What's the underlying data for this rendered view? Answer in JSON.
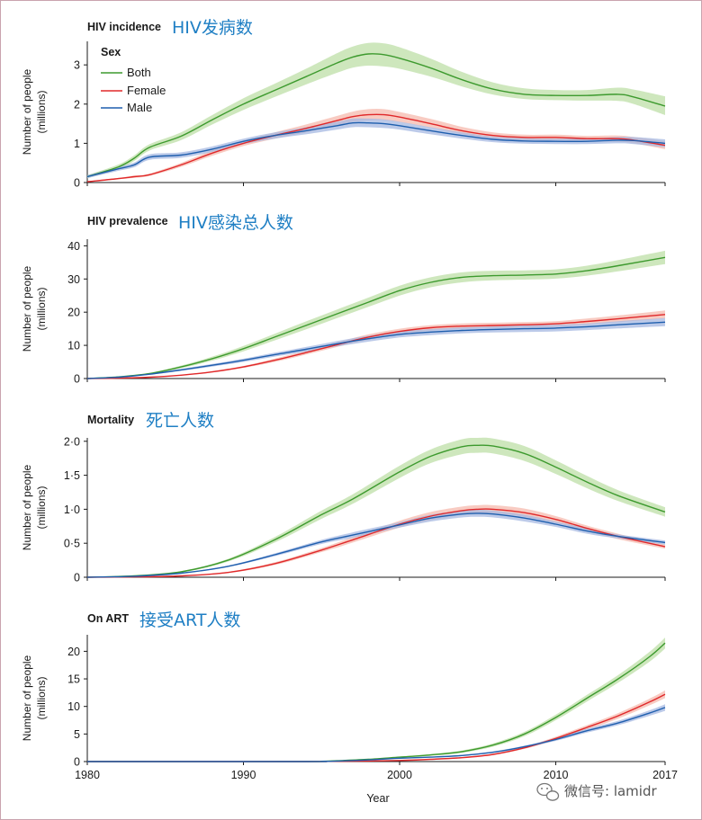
{
  "x_axis": {
    "label": "Year",
    "ticks": [
      {
        "value": 1980,
        "label": "1980"
      },
      {
        "value": 1990,
        "label": "1990"
      },
      {
        "value": 2000,
        "label": "2000"
      },
      {
        "value": 2010,
        "label": "2010"
      },
      {
        "value": 2017,
        "label": "2017"
      }
    ]
  },
  "legend": {
    "title": "Sex",
    "entries": [
      {
        "key": "both",
        "label": "Both",
        "color": "#3d9a2e"
      },
      {
        "key": "female",
        "label": "Female",
        "color": "#e0282a"
      },
      {
        "key": "male",
        "label": "Male",
        "color": "#1f5fae"
      }
    ]
  },
  "band_colors": {
    "both": "#bedfa7",
    "female": "#f6b9ae",
    "male": "#a6b8e2"
  },
  "watermark": {
    "text": "微信号: lamidr"
  },
  "chart_data": [
    {
      "type": "line",
      "title": "HIV incidence",
      "title_cn": "HIV发病数",
      "xlabel": "",
      "ylabel": "Number of people",
      "ylabel2": "(millions)",
      "xlim": [
        1980,
        2017
      ],
      "ylim": [
        0,
        3.6
      ],
      "yticks": [
        {
          "v": 0,
          "t": "0"
        },
        {
          "v": 1,
          "t": "1"
        },
        {
          "v": 2,
          "t": "2"
        },
        {
          "v": 3,
          "t": "3"
        }
      ],
      "x": [
        1980,
        1982,
        1983,
        1984,
        1986,
        1988,
        1990,
        1992,
        1994,
        1996,
        1997,
        1998,
        1999,
        2000,
        2002,
        2004,
        2006,
        2008,
        2010,
        2012,
        2014,
        2015,
        2017
      ],
      "series": [
        {
          "key": "both",
          "name": "Both",
          "values": [
            0.15,
            0.4,
            0.62,
            0.9,
            1.18,
            1.6,
            2.0,
            2.35,
            2.7,
            3.05,
            3.2,
            3.28,
            3.26,
            3.17,
            2.92,
            2.62,
            2.38,
            2.25,
            2.22,
            2.22,
            2.25,
            2.18,
            1.95
          ],
          "lower": [
            0.11,
            0.34,
            0.55,
            0.82,
            1.08,
            1.48,
            1.85,
            2.18,
            2.5,
            2.8,
            2.93,
            2.98,
            2.96,
            2.9,
            2.7,
            2.45,
            2.24,
            2.13,
            2.1,
            2.09,
            2.08,
            2.0,
            1.72
          ],
          "upper": [
            0.19,
            0.46,
            0.69,
            0.98,
            1.28,
            1.72,
            2.15,
            2.52,
            2.9,
            3.3,
            3.47,
            3.56,
            3.55,
            3.45,
            3.16,
            2.82,
            2.55,
            2.4,
            2.36,
            2.36,
            2.42,
            2.37,
            2.2
          ]
        },
        {
          "key": "female",
          "name": "Female",
          "values": [
            0.02,
            0.1,
            0.15,
            0.2,
            0.45,
            0.75,
            1.0,
            1.2,
            1.38,
            1.58,
            1.68,
            1.73,
            1.73,
            1.67,
            1.5,
            1.32,
            1.2,
            1.15,
            1.15,
            1.12,
            1.12,
            1.08,
            0.95
          ],
          "lower": [
            0.01,
            0.08,
            0.12,
            0.17,
            0.4,
            0.68,
            0.93,
            1.12,
            1.28,
            1.46,
            1.55,
            1.59,
            1.59,
            1.54,
            1.4,
            1.24,
            1.13,
            1.08,
            1.08,
            1.05,
            1.04,
            1.0,
            0.85
          ],
          "upper": [
            0.03,
            0.12,
            0.18,
            0.23,
            0.5,
            0.82,
            1.07,
            1.28,
            1.48,
            1.7,
            1.81,
            1.87,
            1.87,
            1.8,
            1.62,
            1.42,
            1.28,
            1.22,
            1.22,
            1.19,
            1.2,
            1.16,
            1.05
          ]
        },
        {
          "key": "male",
          "name": "Male",
          "values": [
            0.15,
            0.35,
            0.45,
            0.65,
            0.7,
            0.85,
            1.05,
            1.2,
            1.32,
            1.45,
            1.52,
            1.52,
            1.5,
            1.45,
            1.32,
            1.2,
            1.1,
            1.06,
            1.05,
            1.05,
            1.08,
            1.07,
            1.0
          ],
          "lower": [
            0.11,
            0.3,
            0.39,
            0.58,
            0.63,
            0.78,
            0.98,
            1.12,
            1.23,
            1.35,
            1.41,
            1.41,
            1.39,
            1.35,
            1.23,
            1.12,
            1.03,
            0.99,
            0.98,
            0.98,
            1.0,
            0.98,
            0.9
          ],
          "upper": [
            0.19,
            0.4,
            0.51,
            0.72,
            0.77,
            0.92,
            1.12,
            1.28,
            1.41,
            1.55,
            1.63,
            1.63,
            1.61,
            1.55,
            1.41,
            1.28,
            1.17,
            1.13,
            1.12,
            1.12,
            1.16,
            1.16,
            1.1
          ]
        }
      ]
    },
    {
      "type": "line",
      "title": "HIV prevalence",
      "title_cn": "HIV感染总人数",
      "xlabel": "",
      "ylabel": "Number of people",
      "ylabel2": "(millions)",
      "xlim": [
        1980,
        2017
      ],
      "ylim": [
        0,
        42
      ],
      "yticks": [
        {
          "v": 0,
          "t": "0"
        },
        {
          "v": 10,
          "t": "10"
        },
        {
          "v": 20,
          "t": "20"
        },
        {
          "v": 30,
          "t": "30"
        },
        {
          "v": 40,
          "t": "40"
        }
      ],
      "x": [
        1980,
        1982,
        1984,
        1986,
        1988,
        1990,
        1992,
        1994,
        1996,
        1998,
        2000,
        2002,
        2004,
        2006,
        2008,
        2010,
        2012,
        2014,
        2017
      ],
      "series": [
        {
          "key": "both",
          "name": "Both",
          "values": [
            0,
            0.5,
            1.5,
            3.5,
            6.0,
            9.0,
            12.5,
            16.0,
            19.5,
            23.0,
            26.5,
            29.0,
            30.5,
            31.0,
            31.2,
            31.5,
            32.5,
            34.0,
            36.5
          ],
          "lower": [
            0,
            0.4,
            1.3,
            3.1,
            5.4,
            8.2,
            11.5,
            14.8,
            18.2,
            21.6,
            25.0,
            27.5,
            29.0,
            29.6,
            29.8,
            30.1,
            31.0,
            32.3,
            34.5
          ],
          "upper": [
            0,
            0.6,
            1.7,
            3.9,
            6.6,
            9.8,
            13.5,
            17.2,
            20.8,
            24.4,
            28.0,
            30.5,
            32.0,
            32.5,
            32.6,
            32.9,
            34.0,
            35.7,
            38.5
          ]
        },
        {
          "key": "female",
          "name": "Female",
          "values": [
            0,
            0.1,
            0.4,
            1.0,
            2.0,
            3.5,
            5.5,
            7.8,
            10.2,
            12.5,
            14.2,
            15.3,
            15.8,
            16.0,
            16.2,
            16.5,
            17.2,
            18.0,
            19.3
          ],
          "lower": [
            0,
            0.08,
            0.35,
            0.9,
            1.8,
            3.2,
            5.0,
            7.2,
            9.5,
            11.7,
            13.4,
            14.5,
            15.0,
            15.2,
            15.4,
            15.7,
            16.3,
            17.0,
            18.1
          ],
          "upper": [
            0,
            0.12,
            0.45,
            1.1,
            2.2,
            3.8,
            6.0,
            8.4,
            10.9,
            13.3,
            15.0,
            16.1,
            16.6,
            16.8,
            17.0,
            17.3,
            18.1,
            19.0,
            20.5
          ]
        },
        {
          "key": "male",
          "name": "Male",
          "values": [
            0,
            0.4,
            1.3,
            2.6,
            4.0,
            5.5,
            7.2,
            8.8,
            10.5,
            12.0,
            13.3,
            14.0,
            14.5,
            14.8,
            15.0,
            15.2,
            15.6,
            16.2,
            17.0
          ],
          "lower": [
            0,
            0.35,
            1.15,
            2.3,
            3.6,
            5.0,
            6.6,
            8.1,
            9.7,
            11.1,
            12.4,
            13.1,
            13.6,
            13.9,
            14.0,
            14.2,
            14.6,
            15.1,
            15.8
          ],
          "upper": [
            0,
            0.45,
            1.45,
            2.9,
            4.4,
            6.0,
            7.8,
            9.5,
            11.3,
            12.9,
            14.2,
            14.9,
            15.4,
            15.7,
            16.0,
            16.2,
            16.6,
            17.3,
            18.2
          ]
        }
      ]
    },
    {
      "type": "line",
      "title": "Mortality",
      "title_cn": "死亡人数",
      "xlabel": "",
      "ylabel": "Number of people",
      "ylabel2": "(millions)",
      "xlim": [
        1980,
        2017
      ],
      "ylim": [
        0,
        2.05
      ],
      "yticks": [
        {
          "v": 0,
          "t": "0"
        },
        {
          "v": 0.5,
          "t": "0·5"
        },
        {
          "v": 1.0,
          "t": "1·0"
        },
        {
          "v": 1.5,
          "t": "1·5"
        },
        {
          "v": 2.0,
          "t": "2·0"
        }
      ],
      "x": [
        1980,
        1983,
        1986,
        1989,
        1992,
        1995,
        1997,
        2000,
        2002,
        2004,
        2005,
        2006,
        2008,
        2010,
        2012,
        2014,
        2017
      ],
      "series": [
        {
          "key": "both",
          "name": "Both",
          "values": [
            0,
            0.02,
            0.08,
            0.25,
            0.55,
            0.92,
            1.15,
            1.55,
            1.78,
            1.92,
            1.94,
            1.93,
            1.82,
            1.62,
            1.4,
            1.2,
            0.96
          ],
          "lower": [
            0,
            0.018,
            0.07,
            0.23,
            0.51,
            0.86,
            1.08,
            1.46,
            1.68,
            1.81,
            1.83,
            1.82,
            1.71,
            1.52,
            1.31,
            1.12,
            0.89
          ],
          "upper": [
            0,
            0.022,
            0.09,
            0.27,
            0.59,
            0.98,
            1.22,
            1.64,
            1.88,
            2.03,
            2.05,
            2.04,
            1.93,
            1.72,
            1.49,
            1.28,
            1.03
          ]
        },
        {
          "key": "female",
          "name": "Female",
          "values": [
            0,
            0.005,
            0.02,
            0.07,
            0.2,
            0.4,
            0.55,
            0.78,
            0.9,
            0.98,
            1.0,
            1.0,
            0.95,
            0.85,
            0.72,
            0.6,
            0.45
          ],
          "lower": [
            0,
            0.004,
            0.018,
            0.06,
            0.18,
            0.37,
            0.51,
            0.73,
            0.84,
            0.92,
            0.94,
            0.94,
            0.89,
            0.8,
            0.68,
            0.56,
            0.42
          ],
          "upper": [
            0,
            0.006,
            0.022,
            0.08,
            0.22,
            0.43,
            0.59,
            0.83,
            0.96,
            1.04,
            1.06,
            1.06,
            1.01,
            0.9,
            0.76,
            0.64,
            0.48
          ]
        },
        {
          "key": "male",
          "name": "Male",
          "values": [
            0,
            0.015,
            0.06,
            0.16,
            0.33,
            0.52,
            0.62,
            0.77,
            0.87,
            0.93,
            0.94,
            0.93,
            0.87,
            0.78,
            0.68,
            0.6,
            0.51
          ],
          "lower": [
            0,
            0.013,
            0.055,
            0.15,
            0.31,
            0.49,
            0.58,
            0.73,
            0.82,
            0.88,
            0.89,
            0.88,
            0.82,
            0.74,
            0.64,
            0.57,
            0.48
          ],
          "upper": [
            0,
            0.017,
            0.065,
            0.17,
            0.35,
            0.55,
            0.66,
            0.81,
            0.92,
            0.98,
            0.99,
            0.98,
            0.92,
            0.82,
            0.72,
            0.63,
            0.54
          ]
        }
      ]
    },
    {
      "type": "line",
      "title": "On ART",
      "title_cn": "接受ART人数",
      "xlabel": "Year",
      "ylabel": "Number of people",
      "ylabel2": "(millions)",
      "xlim": [
        1980,
        2017
      ],
      "ylim": [
        0,
        23
      ],
      "yticks": [
        {
          "v": 0,
          "t": "0"
        },
        {
          "v": 5,
          "t": "5"
        },
        {
          "v": 10,
          "t": "10"
        },
        {
          "v": 15,
          "t": "15"
        },
        {
          "v": 20,
          "t": "20"
        }
      ],
      "x": [
        1980,
        1994,
        1995,
        1996,
        1998,
        2000,
        2002,
        2004,
        2006,
        2008,
        2010,
        2012,
        2014,
        2016,
        2017
      ],
      "series": [
        {
          "key": "both",
          "name": "Both",
          "values": [
            0,
            0,
            0.05,
            0.15,
            0.4,
            0.8,
            1.2,
            1.8,
            3.0,
            5.0,
            8.0,
            11.5,
            15.0,
            19.0,
            21.5
          ],
          "lower": [
            0,
            0,
            0.04,
            0.13,
            0.35,
            0.7,
            1.05,
            1.6,
            2.7,
            4.6,
            7.5,
            10.9,
            14.3,
            18.1,
            20.5
          ],
          "upper": [
            0,
            0,
            0.06,
            0.17,
            0.45,
            0.9,
            1.35,
            2.0,
            3.3,
            5.4,
            8.5,
            12.1,
            15.7,
            19.9,
            22.5
          ]
        },
        {
          "key": "female",
          "name": "Female",
          "values": [
            0,
            0,
            0.02,
            0.05,
            0.1,
            0.2,
            0.4,
            0.7,
            1.3,
            2.5,
            4.2,
            6.2,
            8.3,
            10.8,
            12.2
          ],
          "lower": [
            0,
            0,
            0.015,
            0.04,
            0.08,
            0.17,
            0.35,
            0.62,
            1.18,
            2.3,
            3.9,
            5.8,
            7.8,
            10.2,
            11.5
          ],
          "upper": [
            0,
            0,
            0.025,
            0.06,
            0.12,
            0.23,
            0.45,
            0.78,
            1.42,
            2.7,
            4.5,
            6.6,
            8.8,
            11.4,
            12.9
          ]
        },
        {
          "key": "male",
          "name": "Male",
          "values": [
            0,
            0,
            0.03,
            0.1,
            0.3,
            0.6,
            0.8,
            1.1,
            1.7,
            2.7,
            4.0,
            5.6,
            7.0,
            8.8,
            9.8
          ],
          "lower": [
            0,
            0,
            0.025,
            0.08,
            0.26,
            0.53,
            0.72,
            1.0,
            1.55,
            2.5,
            3.75,
            5.25,
            6.6,
            8.3,
            9.2
          ],
          "upper": [
            0,
            0,
            0.035,
            0.12,
            0.34,
            0.67,
            0.88,
            1.2,
            1.85,
            2.9,
            4.25,
            5.95,
            7.4,
            9.3,
            10.4
          ]
        }
      ]
    }
  ]
}
